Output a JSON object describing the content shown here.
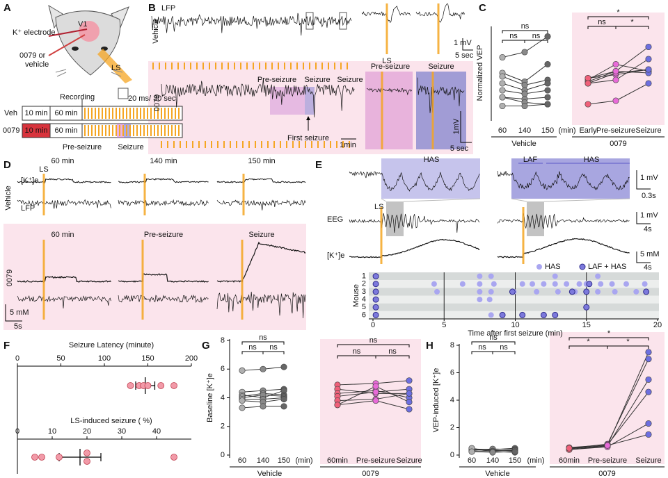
{
  "panel_a": {
    "letter": "A",
    "v1": "V1",
    "electrode": "K⁺ electrode",
    "drug": [
      "0079 or",
      "vehicle"
    ],
    "ls": "LS",
    "recording": "Recording",
    "stim": "20 ms/ 30 sec",
    "veh": "Veh",
    "t10": "10 min",
    "t60": "60 min",
    "drug_row": "0079",
    "t10b": "10 min",
    "t60b": "60 min",
    "pre": "Pre-seizure",
    "seizure": "Seizure"
  },
  "panel_b": {
    "letter": "B",
    "lfp": "LFP",
    "vehicle": "Vehicle",
    "ls": "LS",
    "scale_mv": "1 mV",
    "scale_s": "5 sec",
    "drug": "0079",
    "pre_trace": "Pre-seizure",
    "seizure_trace": "Seizure",
    "seizure_trace_2": "Seizure",
    "pre_zoom": "Pre-seizure",
    "seizure_zoom": "Seizure",
    "first": "First seizure",
    "scale_min": "1min",
    "scale_mv2": "1mV",
    "scale_s2": "5 sec"
  },
  "panel_c": {
    "letter": "C"
  },
  "panel_d": {
    "letter": "D",
    "ls": "LS",
    "veh_times": [
      "60 min",
      "140 min",
      "150 min"
    ],
    "k": "[K⁺]e",
    "lfp": "LFP",
    "vehicle": "Vehicle",
    "drug_times": [
      "60 min",
      "Pre-seizure",
      "Seizure"
    ],
    "drug": "0079",
    "scale_mm": "5 mM",
    "scale_s": "5s"
  },
  "panel_e": {
    "letter": "E",
    "has1": "HAS",
    "laf": "LAF",
    "has2": "HAS",
    "scale_mv": "1 mV",
    "scale_s": "0.3s",
    "ls": "LS",
    "eeg": "EEG",
    "scale_mv2": "1 mV",
    "scale_s2": "4s",
    "k": "[K⁺]e",
    "scale_mm": "5 mM",
    "scale_s3": "4s"
  },
  "panel_f": {
    "letter": "F"
  },
  "panel_g": {
    "letter": "G"
  },
  "panel_h": {
    "letter": "H"
  },
  "chart_data": [
    {
      "type": "line",
      "ylabel": "Normalized VEP",
      "categories": [
        "60",
        "140",
        "150"
      ],
      "xunit": "(min)",
      "xlabel": "Vehicle",
      "ylim": [
        0,
        2.6
      ],
      "line_color": "#333333",
      "point_colors": [
        "#b0b0b0",
        "#8a8a8a",
        "#666666"
      ],
      "significance": [
        "ns",
        "ns",
        "ns"
      ],
      "series": [
        {
          "values": [
            1.75,
            1.9,
            2.35
          ]
        },
        {
          "values": [
            1.3,
            1.05,
            1.55
          ]
        },
        {
          "values": [
            1.2,
            0.95,
            1.1
          ]
        },
        {
          "values": [
            1.0,
            0.8,
            1.0
          ]
        },
        {
          "values": [
            0.8,
            0.7,
            0.8
          ]
        },
        {
          "values": [
            0.6,
            0.55,
            0.6
          ]
        },
        {
          "values": [
            0.6,
            0.45,
            0.4
          ]
        },
        {
          "values": [
            0.35,
            0.35,
            0.4
          ]
        }
      ]
    },
    {
      "type": "line",
      "categories": [
        "Early",
        "Pre-seizure",
        "Seizure"
      ],
      "xlabel": "0079",
      "ylim": [
        0,
        2.6
      ],
      "line_color": "#333333",
      "point_colors": [
        "#f0607a",
        "#e86ad8",
        "#6d6fe0"
      ],
      "significance": [
        "*",
        "ns",
        "*"
      ],
      "series": [
        {
          "values": [
            1.15,
            1.25,
            1.4
          ]
        },
        {
          "values": [
            1.1,
            1.55,
            1.35
          ]
        },
        {
          "values": [
            1.05,
            1.35,
            1.3
          ]
        },
        {
          "values": [
            1.0,
            1.3,
            1.4
          ]
        },
        {
          "values": [
            1.15,
            1.35,
            2.05
          ]
        },
        {
          "values": [
            0.4,
            0.5,
            1.0
          ]
        },
        {
          "values": [
            1.0,
            1.1,
            1.7
          ]
        }
      ]
    },
    {
      "type": "dot",
      "title": "Seizure Latency (minute)",
      "values": [
        130,
        140,
        145,
        150,
        165,
        180
      ],
      "mean": 147,
      "sem": 11,
      "xlim": [
        0,
        200
      ],
      "xticks": [
        0,
        50,
        100,
        150,
        200
      ],
      "color": "#f29aa8"
    },
    {
      "type": "dot",
      "title": "LS-induced seizure ( %)",
      "values": [
        5,
        7,
        12,
        20,
        20,
        45
      ],
      "mean": 18,
      "sem": 6,
      "xlim": [
        0,
        50
      ],
      "xticks": [
        0,
        10,
        20,
        30,
        40
      ],
      "color": "#f29aa8"
    },
    {
      "type": "line",
      "ylabel": "Baseline [K⁺]e",
      "categories": [
        "60",
        "140",
        "150"
      ],
      "xunit": "(min)",
      "xlabel": "Vehicle",
      "ylim": [
        0,
        8
      ],
      "yticks": [
        0,
        2,
        4,
        6,
        8
      ],
      "line_color": "#333333",
      "point_colors": [
        "#b0b0b0",
        "#8a8a8a",
        "#666666"
      ],
      "significance": [
        "ns",
        "ns",
        "ns"
      ],
      "series": [
        {
          "values": [
            5.9,
            6.0,
            6.15
          ]
        },
        {
          "values": [
            4.4,
            4.5,
            4.6
          ]
        },
        {
          "values": [
            4.2,
            4.0,
            4.5
          ]
        },
        {
          "values": [
            4.1,
            4.3,
            4.2
          ]
        },
        {
          "values": [
            4.0,
            4.2,
            4.1
          ]
        },
        {
          "values": [
            3.9,
            3.9,
            4.0
          ]
        },
        {
          "values": [
            3.8,
            3.7,
            3.9
          ]
        },
        {
          "values": [
            3.3,
            3.4,
            3.4
          ]
        }
      ]
    },
    {
      "type": "line",
      "categories": [
        "60min",
        "Pre-seizure",
        "Seizure"
      ],
      "xlabel": "0079",
      "ylim": [
        0,
        8
      ],
      "line_color": "#333333",
      "point_colors": [
        "#f0607a",
        "#e86ad8",
        "#6d6fe0"
      ],
      "significance": [
        "ns",
        "ns",
        "ns"
      ],
      "series": [
        {
          "values": [
            4.9,
            5.0,
            5.2
          ]
        },
        {
          "values": [
            4.6,
            4.3,
            4.3
          ]
        },
        {
          "values": [
            4.3,
            4.5,
            4.0
          ]
        },
        {
          "values": [
            4.1,
            4.4,
            4.6
          ]
        },
        {
          "values": [
            3.8,
            3.9,
            4.3
          ]
        },
        {
          "values": [
            3.5,
            4.8,
            3.7
          ]
        },
        {
          "values": [
            3.5,
            3.8,
            3.2
          ]
        }
      ]
    },
    {
      "type": "line",
      "ylabel": "VEP-induced [K⁺]e",
      "categories": [
        "60",
        "140",
        "150"
      ],
      "xunit": "(min)",
      "xlabel": "Vehicle",
      "ylim": [
        0,
        8
      ],
      "yticks": [
        0,
        2,
        4,
        6,
        8
      ],
      "line_color": "#333333",
      "point_colors": [
        "#b0b0b0",
        "#8a8a8a",
        "#666666"
      ],
      "significance": [
        "ns",
        "ns",
        "ns"
      ],
      "series": [
        {
          "values": [
            0.45,
            0.4,
            0.5
          ]
        },
        {
          "values": [
            0.4,
            0.35,
            0.3
          ]
        },
        {
          "values": [
            0.35,
            0.45,
            0.4
          ]
        },
        {
          "values": [
            0.3,
            0.3,
            0.35
          ]
        },
        {
          "values": [
            0.5,
            0.25,
            0.2
          ]
        },
        {
          "values": [
            0.25,
            0.2,
            0.25
          ]
        }
      ]
    },
    {
      "type": "line",
      "categories": [
        "60min",
        "Pre-seizure",
        "Seizure"
      ],
      "xlabel": "0079",
      "ylim": [
        0,
        8
      ],
      "line_color": "#333333",
      "point_colors": [
        "#f0607a",
        "#e86ad8",
        "#6d6fe0"
      ],
      "significance": [
        "*",
        "*",
        "*"
      ],
      "series": [
        {
          "values": [
            0.45,
            0.7,
            7.5
          ]
        },
        {
          "values": [
            0.5,
            0.8,
            7.0
          ]
        },
        {
          "values": [
            0.4,
            0.65,
            5.5
          ]
        },
        {
          "values": [
            0.55,
            0.75,
            4.6
          ]
        },
        {
          "values": [
            0.4,
            0.6,
            2.3
          ]
        },
        {
          "values": [
            0.5,
            0.7,
            1.5
          ]
        }
      ]
    },
    {
      "type": "scatter",
      "xlabel": "Time after first seizure (min)",
      "ylabel": "Mouse",
      "xlim": [
        0,
        20
      ],
      "xticks": [
        0,
        5,
        10,
        15,
        20
      ],
      "ylim": [
        0.5,
        6.5
      ],
      "yticks": [
        1,
        2,
        3,
        4,
        5,
        6
      ],
      "y_inverted": true,
      "grid": true,
      "legend": "top-right",
      "series": [
        {
          "name": "HAS",
          "color": "#a9a6f0",
          "x": [
            7.5,
            8.3,
            12.8,
            15.8,
            4.3,
            6.3,
            7.5,
            8.5,
            10.5,
            11.2,
            12,
            12.8,
            13.6,
            14.5,
            15,
            16,
            16.8,
            17.8,
            19.1,
            4.5,
            7.5,
            8.3,
            9.9,
            11.5,
            13,
            14.2,
            15.8,
            17,
            18.5,
            7.5,
            8.2,
            8.3
          ],
          "y": [
            1,
            1,
            1,
            1,
            2,
            2,
            2,
            2,
            2,
            2,
            2,
            2,
            2,
            2,
            2,
            2,
            2,
            2,
            2,
            3,
            3,
            3,
            3,
            3,
            3,
            3,
            3,
            3,
            3,
            4,
            4,
            6
          ]
        },
        {
          "name": "LAF + HAS",
          "color": "#7c79dc",
          "x": [
            0.2,
            0.2,
            15.2,
            0.2,
            9.8,
            14,
            15,
            19.2,
            0.2,
            0.2,
            15,
            0.2,
            9.1,
            10.5,
            12,
            12.8
          ],
          "y": [
            1,
            2,
            2,
            3,
            3,
            3,
            3,
            3,
            4,
            5,
            5,
            6,
            6,
            6,
            6,
            6
          ]
        }
      ]
    }
  ]
}
